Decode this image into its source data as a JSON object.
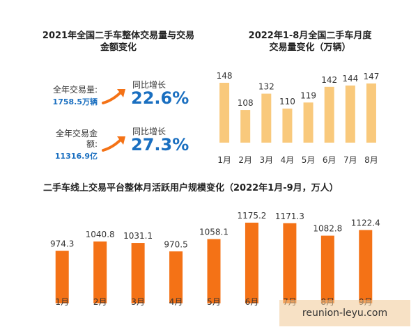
{
  "titles": {
    "left_line1": "2021年全国二手车整体交易量与交易",
    "left_line2": "金额变化",
    "right_line1": "2022年1-8月全国二手车月度",
    "right_line2": "交易量变化（万辆）",
    "bottom": "二手车线上交易平台整体月活跃用户规模变化（2022年1月-9月，万人）"
  },
  "stats": {
    "volume_label": "全年交易量:",
    "volume_value": "1758.5万辆",
    "volume_growth_label": "同比增长",
    "volume_growth_value": "22.6%",
    "amount_label_line1": "全年交易金",
    "amount_label_line2": "额:",
    "amount_value": "11316.9亿",
    "amount_growth_label": "同比增长",
    "amount_growth_value": "27.3%"
  },
  "watermark": "reunion-leyu.com",
  "colors": {
    "top_bar": "#f9c97c",
    "bottom_bar": "#f47216",
    "accent_text": "#1a6fc0"
  },
  "chart_data": [
    {
      "type": "bar",
      "title": "2022年1-8月全国二手车月度交易量变化（万辆）",
      "categories": [
        "1月",
        "2月",
        "3月",
        "4月",
        "5月",
        "6月",
        "7月",
        "8月"
      ],
      "values": [
        148,
        108,
        132,
        110,
        119,
        142,
        144,
        147
      ],
      "ylim": [
        0,
        150
      ],
      "grid": false
    },
    {
      "type": "bar",
      "title": "二手车线上交易平台整体月活跃用户规模变化（2022年1月-9月，万人）",
      "categories": [
        "1月",
        "2月",
        "3月",
        "4月",
        "5月",
        "6月",
        "7月",
        "8月",
        "9月"
      ],
      "values": [
        974.3,
        1040.8,
        1031.1,
        970.5,
        1058.1,
        1175.2,
        1171.3,
        1082.8,
        1122.4
      ],
      "ylim": [
        0,
        1200
      ],
      "grid": false
    }
  ]
}
